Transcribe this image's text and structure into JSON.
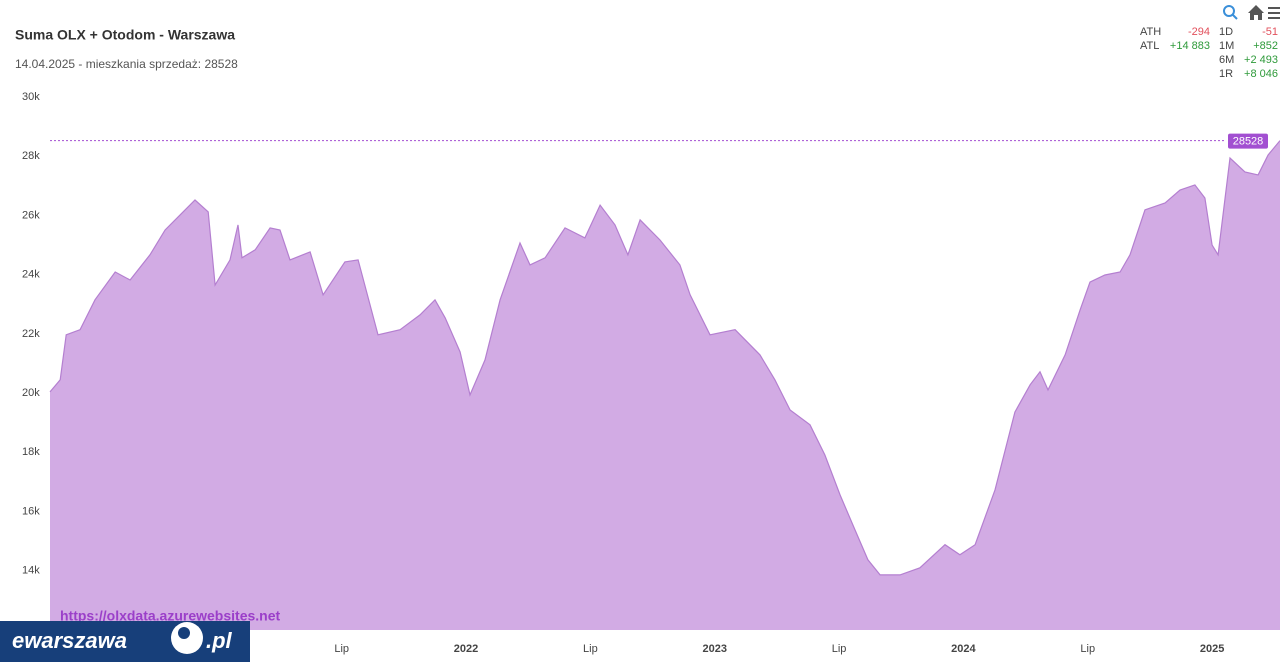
{
  "chart_data": {
    "type": "area",
    "title": "Suma OLX + Otodom - Warszawa",
    "subtitle": "14.04.2025 - mieszkania sprzedaż: 28528",
    "watermark": "https://olxdata.azurewebsites.net",
    "color": "#d2abe4",
    "line_color": "#b47fd0",
    "last_label": 28528,
    "last_label_color": "#a24fd1",
    "x": [
      2020.327,
      2020.368,
      2020.392,
      2020.448,
      2020.508,
      2020.589,
      2020.649,
      2020.729,
      2020.79,
      2020.85,
      2020.91,
      2020.963,
      2020.991,
      2021.051,
      2021.083,
      2021.099,
      2021.152,
      2021.212,
      2021.252,
      2021.292,
      2021.373,
      2021.425,
      2021.513,
      2021.566,
      2021.646,
      2021.735,
      2021.815,
      2021.875,
      2021.916,
      2021.976,
      2022.016,
      2022.076,
      2022.137,
      2022.217,
      2022.257,
      2022.318,
      2022.398,
      2022.478,
      2022.539,
      2022.599,
      2022.651,
      2022.7,
      2022.78,
      2022.86,
      2022.901,
      2022.981,
      2023.082,
      2023.182,
      2023.242,
      2023.303,
      2023.383,
      2023.443,
      2023.504,
      2023.564,
      2023.616,
      2023.665,
      2023.745,
      2023.825,
      2023.926,
      2023.986,
      2024.047,
      2024.127,
      2024.207,
      2024.268,
      2024.308,
      2024.34,
      2024.409,
      2024.469,
      2024.509,
      2024.569,
      2024.63,
      2024.67,
      2024.73,
      2024.811,
      2024.871,
      2024.931,
      2024.971,
      2025.0,
      2025.024,
      2025.072,
      2025.132,
      2025.185,
      2025.225,
      2025.273
    ],
    "values": [
      20040,
      20450,
      21970,
      22140,
      23150,
      24090,
      23820,
      24670,
      25510,
      26020,
      26520,
      26120,
      23650,
      24500,
      25680,
      24570,
      24840,
      25580,
      25510,
      24500,
      24770,
      23320,
      24430,
      24500,
      21970,
      22140,
      22640,
      23150,
      22540,
      21390,
      19940,
      21120,
      23150,
      25070,
      24330,
      24570,
      25580,
      25240,
      26350,
      25680,
      24670,
      25850,
      25170,
      24330,
      23320,
      21970,
      22140,
      21290,
      20450,
      19430,
      18930,
      17910,
      16560,
      15380,
      14370,
      13860,
      13860,
      14100,
      14880,
      14540,
      14880,
      16730,
      19360,
      20280,
      20720,
      20110,
      21290,
      22810,
      23750,
      23990,
      24090,
      24670,
      26190,
      26420,
      26860,
      27030,
      26590,
      25000,
      24670,
      27940,
      27470,
      27370,
      28040,
      28528
    ],
    "xlim": [
      2020.327,
      2025.273
    ],
    "xticks": [
      {
        "value": 2021.5,
        "label": "Lip"
      },
      2022,
      {
        "value": 2022.5,
        "label": "Lip"
      },
      2023,
      {
        "value": 2023.5,
        "label": "Lip"
      },
      2024,
      {
        "value": 2024.5,
        "label": "Lip"
      },
      2025
    ],
    "ylim": [
      12000,
      30000
    ],
    "yticks": [
      {
        "value": 14000,
        "label": "14k"
      },
      {
        "value": 16000,
        "label": "16k"
      },
      {
        "value": 18000,
        "label": "18k"
      },
      {
        "value": 20000,
        "label": "20k"
      },
      {
        "value": 22000,
        "label": "22k"
      },
      {
        "value": 24000,
        "label": "24k"
      },
      {
        "value": 26000,
        "label": "26k"
      },
      {
        "value": 28000,
        "label": "28k"
      },
      {
        "value": 30000,
        "label": "30k"
      }
    ],
    "grid": false,
    "stats_left": [
      {
        "label": "ATH",
        "value": "-294",
        "color": "#e2505c"
      },
      {
        "label": "ATL",
        "value": "+14 883",
        "color": "#2e9a3a"
      }
    ],
    "stats_right": [
      {
        "label": "1D",
        "value": "-51",
        "color": "#e2505c"
      },
      {
        "label": "1M",
        "value": "+852",
        "color": "#2e9a3a"
      },
      {
        "label": "6M",
        "value": "+2 493",
        "color": "#2e9a3a"
      },
      {
        "label": "1R",
        "value": "+8 046",
        "color": "#2e9a3a"
      }
    ]
  },
  "logo": {
    "name": "ewarszawa",
    "suffix": ".pl"
  }
}
